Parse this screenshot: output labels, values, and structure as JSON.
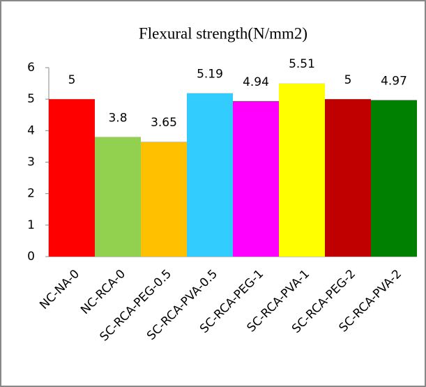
{
  "chart_data": {
    "type": "bar",
    "title": "Flexural strength(N/mm2)",
    "categories": [
      "NC-NA-0",
      "NC-RCA-0",
      "SC-RCA-PEG-0.5",
      "SC-RCA-PVA-0.5",
      "SC-RCA-PEG-1",
      "SC-RCA-PVA-1",
      "SC-RCA-PEG-2",
      "SC-RCA-PVA-2"
    ],
    "values": [
      5,
      3.8,
      3.65,
      5.19,
      4.94,
      5.51,
      5,
      4.97
    ],
    "colors": [
      "#ff0000",
      "#92d050",
      "#ffc000",
      "#33ccff",
      "#ff00ff",
      "#ffff00",
      "#c00000",
      "#008000"
    ],
    "ylim": [
      0,
      6
    ],
    "yticks": [
      0,
      1,
      2,
      3,
      4,
      5,
      6
    ],
    "grid": false
  }
}
